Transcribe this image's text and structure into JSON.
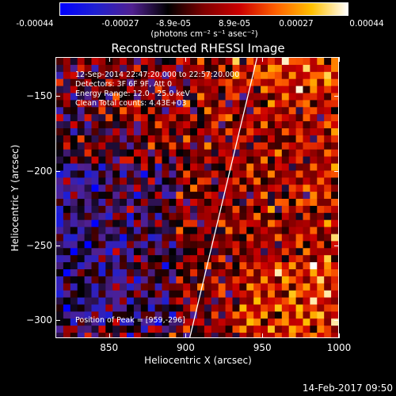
{
  "colorbar": {
    "ticks": [
      "-0.00044",
      "-0.00027",
      "-8.9e-05",
      "8.9e-05",
      "0.00027",
      "0.00044"
    ],
    "unit": "(photons cm⁻² s⁻¹ asec⁻²)",
    "colormap": [
      "#0000ff",
      "#2020d0",
      "#502090",
      "#000000",
      "#800000",
      "#cc0000",
      "#ff6000",
      "#ffc000",
      "#ffffff"
    ]
  },
  "chart_data": {
    "type": "heatmap",
    "title": "Reconstructed RHESSI Image",
    "xlabel": "Heliocentric X (arcsec)",
    "ylabel": "Heliocentric Y (arcsec)",
    "xlim": [
      815,
      1000
    ],
    "ylim": [
      -312,
      -124
    ],
    "xticks": [
      850,
      900,
      950,
      1000
    ],
    "yticks": [
      -150,
      -200,
      -250,
      -300
    ],
    "color_range": [
      -0.00044,
      0.00044
    ],
    "limb_line": [
      [
        901,
        -316
      ],
      [
        946,
        -124
      ]
    ],
    "annotations": [
      "12-Sep-2014 22:47:20.000 to 22:57:20.000",
      "Detectors: 3F 6F 9F, Att 0",
      "Energy Range: 12.0 - 25.0 keV",
      "Clean     Total counts: 4.43E+03"
    ],
    "peak_label": "Position of Peak = [959,-296]"
  },
  "timestamp": "14-Feb-2017 09:50"
}
